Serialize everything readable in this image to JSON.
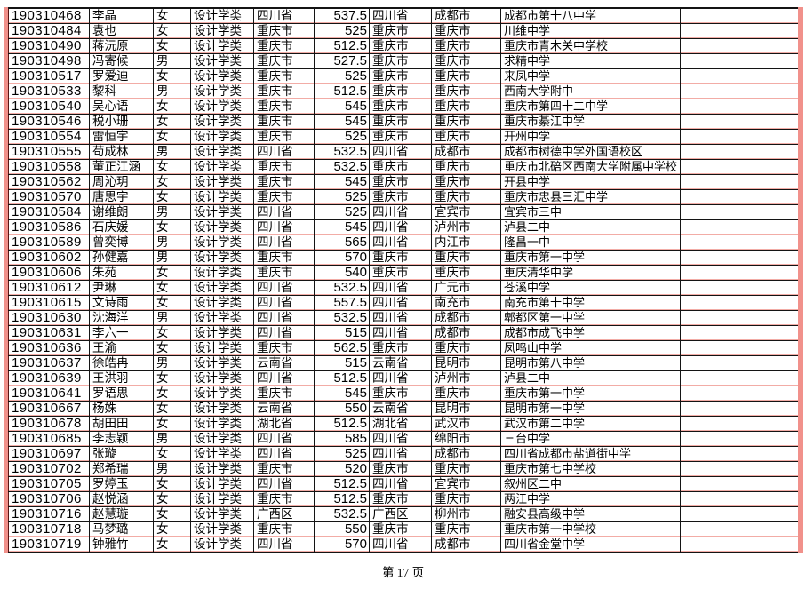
{
  "document": {
    "page_footer": "第 17 页"
  },
  "colors": {
    "frame_pink": "#f1918b",
    "grid_black": "#141414",
    "row_hairline_pink": "#f2aca6"
  },
  "table": {
    "column_keys": [
      "id",
      "name",
      "gender",
      "category",
      "province",
      "score",
      "province2",
      "city",
      "school",
      "blank"
    ],
    "rows": [
      {
        "id": "190310468",
        "name": "李晶",
        "gender": "女",
        "category": "设计学类",
        "province": "四川省",
        "score": "537.5",
        "province2": "四川省",
        "city": "成都市",
        "school": "成都市第十八中学",
        "blank": ""
      },
      {
        "id": "190310484",
        "name": "袁也",
        "gender": "女",
        "category": "设计学类",
        "province": "重庆市",
        "score": "525",
        "province2": "重庆市",
        "city": "重庆市",
        "school": "川维中学",
        "blank": ""
      },
      {
        "id": "190310490",
        "name": "蒋沅原",
        "gender": "女",
        "category": "设计学类",
        "province": "重庆市",
        "score": "512.5",
        "province2": "重庆市",
        "city": "重庆市",
        "school": "重庆市青木关中学校",
        "blank": ""
      },
      {
        "id": "190310498",
        "name": "冯寄候",
        "gender": "男",
        "category": "设计学类",
        "province": "重庆市",
        "score": "527.5",
        "province2": "重庆市",
        "city": "重庆市",
        "school": "求精中学",
        "blank": ""
      },
      {
        "id": "190310517",
        "name": "罗爱迪",
        "gender": "女",
        "category": "设计学类",
        "province": "重庆市",
        "score": "525",
        "province2": "重庆市",
        "city": "重庆市",
        "school": "来凤中学",
        "blank": ""
      },
      {
        "id": "190310533",
        "name": "黎科",
        "gender": "男",
        "category": "设计学类",
        "province": "重庆市",
        "score": "512.5",
        "province2": "重庆市",
        "city": "重庆市",
        "school": "西南大学附中",
        "blank": ""
      },
      {
        "id": "190310540",
        "name": "吴心语",
        "gender": "女",
        "category": "设计学类",
        "province": "重庆市",
        "score": "545",
        "province2": "重庆市",
        "city": "重庆市",
        "school": "重庆市第四十二中学",
        "blank": ""
      },
      {
        "id": "190310546",
        "name": "税小珊",
        "gender": "女",
        "category": "设计学类",
        "province": "重庆市",
        "score": "545",
        "province2": "重庆市",
        "city": "重庆市",
        "school": "重庆市綦江中学",
        "blank": ""
      },
      {
        "id": "190310554",
        "name": "雷恒宇",
        "gender": "女",
        "category": "设计学类",
        "province": "重庆市",
        "score": "525",
        "province2": "重庆市",
        "city": "重庆市",
        "school": "开州中学",
        "blank": ""
      },
      {
        "id": "190310555",
        "name": "苟成林",
        "gender": "男",
        "category": "设计学类",
        "province": "四川省",
        "score": "532.5",
        "province2": "四川省",
        "city": "成都市",
        "school": "成都市树德中学外国语校区",
        "blank": ""
      },
      {
        "id": "190310558",
        "name": "董正江涵",
        "gender": "女",
        "category": "设计学类",
        "province": "重庆市",
        "score": "532.5",
        "province2": "重庆市",
        "city": "重庆市",
        "school": "重庆市北碚区西南大学附属中学校",
        "blank": ""
      },
      {
        "id": "190310562",
        "name": "周沁玥",
        "gender": "女",
        "category": "设计学类",
        "province": "重庆市",
        "score": "545",
        "province2": "重庆市",
        "city": "重庆市",
        "school": "开县中学",
        "blank": ""
      },
      {
        "id": "190310570",
        "name": "唐思宇",
        "gender": "女",
        "category": "设计学类",
        "province": "重庆市",
        "score": "525",
        "province2": "重庆市",
        "city": "重庆市",
        "school": "重庆市忠县三汇中学",
        "blank": ""
      },
      {
        "id": "190310584",
        "name": "谢维朗",
        "gender": "男",
        "category": "设计学类",
        "province": "四川省",
        "score": "525",
        "province2": "四川省",
        "city": "宜宾市",
        "school": "宜宾市三中",
        "blank": ""
      },
      {
        "id": "190310586",
        "name": "石庆媛",
        "gender": "女",
        "category": "设计学类",
        "province": "四川省",
        "score": "545",
        "province2": "四川省",
        "city": "泸州市",
        "school": "泸县二中",
        "blank": ""
      },
      {
        "id": "190310589",
        "name": "曾奕博",
        "gender": "男",
        "category": "设计学类",
        "province": "四川省",
        "score": "565",
        "province2": "四川省",
        "city": "内江市",
        "school": "隆昌一中",
        "blank": ""
      },
      {
        "id": "190310602",
        "name": "孙健嘉",
        "gender": "男",
        "category": "设计学类",
        "province": "重庆市",
        "score": "570",
        "province2": "重庆市",
        "city": "重庆市",
        "school": "重庆市第一中学",
        "blank": ""
      },
      {
        "id": "190310606",
        "name": "朱苑",
        "gender": "女",
        "category": "设计学类",
        "province": "重庆市",
        "score": "540",
        "province2": "重庆市",
        "city": "重庆市",
        "school": "重庆清华中学",
        "blank": ""
      },
      {
        "id": "190310612",
        "name": "尹琳",
        "gender": "女",
        "category": "设计学类",
        "province": "四川省",
        "score": "532.5",
        "province2": "四川省",
        "city": "广元市",
        "school": "苍溪中学",
        "blank": ""
      },
      {
        "id": "190310615",
        "name": "文诗雨",
        "gender": "女",
        "category": "设计学类",
        "province": "四川省",
        "score": "557.5",
        "province2": "四川省",
        "city": "南充市",
        "school": "南充市第十中学",
        "blank": ""
      },
      {
        "id": "190310630",
        "name": "沈海洋",
        "gender": "男",
        "category": "设计学类",
        "province": "四川省",
        "score": "532.5",
        "province2": "四川省",
        "city": "成都市",
        "school": "郫都区第一中学",
        "blank": ""
      },
      {
        "id": "190310631",
        "name": "李六一",
        "gender": "女",
        "category": "设计学类",
        "province": "四川省",
        "score": "515",
        "province2": "四川省",
        "city": "成都市",
        "school": "成都市成飞中学",
        "blank": ""
      },
      {
        "id": "190310636",
        "name": "王渝",
        "gender": "女",
        "category": "设计学类",
        "province": "重庆市",
        "score": "562.5",
        "province2": "重庆市",
        "city": "重庆市",
        "school": "凤鸣山中学",
        "blank": ""
      },
      {
        "id": "190310637",
        "name": "徐皓冉",
        "gender": "男",
        "category": "设计学类",
        "province": "云南省",
        "score": "515",
        "province2": "云南省",
        "city": "昆明市",
        "school": "昆明市第八中学",
        "blank": ""
      },
      {
        "id": "190310639",
        "name": "王洪羽",
        "gender": "女",
        "category": "设计学类",
        "province": "四川省",
        "score": "512.5",
        "province2": "四川省",
        "city": "泸州市",
        "school": "泸县二中",
        "blank": ""
      },
      {
        "id": "190310641",
        "name": "罗语思",
        "gender": "女",
        "category": "设计学类",
        "province": "重庆市",
        "score": "545",
        "province2": "重庆市",
        "city": "重庆市",
        "school": "重庆市第一中学",
        "blank": ""
      },
      {
        "id": "190310667",
        "name": "杨姝",
        "gender": "女",
        "category": "设计学类",
        "province": "云南省",
        "score": "550",
        "province2": "云南省",
        "city": "昆明市",
        "school": "昆明市第一中学",
        "blank": ""
      },
      {
        "id": "190310678",
        "name": "胡田田",
        "gender": "女",
        "category": "设计学类",
        "province": "湖北省",
        "score": "512.5",
        "province2": "湖北省",
        "city": "武汉市",
        "school": "武汉市第二中学",
        "blank": ""
      },
      {
        "id": "190310685",
        "name": "李志颖",
        "gender": "男",
        "category": "设计学类",
        "province": "四川省",
        "score": "585",
        "province2": "四川省",
        "city": "绵阳市",
        "school": "三台中学",
        "blank": ""
      },
      {
        "id": "190310697",
        "name": "张璇",
        "gender": "女",
        "category": "设计学类",
        "province": "四川省",
        "score": "525",
        "province2": "四川省",
        "city": "成都市",
        "school": "四川省成都市盐道街中学",
        "blank": ""
      },
      {
        "id": "190310702",
        "name": "郑希瑞",
        "gender": "男",
        "category": "设计学类",
        "province": "重庆市",
        "score": "520",
        "province2": "重庆市",
        "city": "重庆市",
        "school": "重庆市第七中学校",
        "blank": ""
      },
      {
        "id": "190310705",
        "name": "罗婷玉",
        "gender": "女",
        "category": "设计学类",
        "province": "四川省",
        "score": "512.5",
        "province2": "四川省",
        "city": "宜宾市",
        "school": "叙州区二中",
        "blank": ""
      },
      {
        "id": "190310706",
        "name": "赵悦涵",
        "gender": "女",
        "category": "设计学类",
        "province": "重庆市",
        "score": "512.5",
        "province2": "重庆市",
        "city": "重庆市",
        "school": "两江中学",
        "blank": ""
      },
      {
        "id": "190310716",
        "name": "赵慧璇",
        "gender": "女",
        "category": "设计学类",
        "province": "广西区",
        "score": "532.5",
        "province2": "广西区",
        "city": "柳州市",
        "school": "融安县高级中学",
        "blank": ""
      },
      {
        "id": "190310718",
        "name": "马梦璐",
        "gender": "女",
        "category": "设计学类",
        "province": "重庆市",
        "score": "550",
        "province2": "重庆市",
        "city": "重庆市",
        "school": "重庆市第一中学校",
        "blank": ""
      },
      {
        "id": "190310719",
        "name": "钟雅竹",
        "gender": "女",
        "category": "设计学类",
        "province": "四川省",
        "score": "570",
        "province2": "四川省",
        "city": "成都市",
        "school": "四川省金堂中学",
        "blank": ""
      }
    ]
  }
}
